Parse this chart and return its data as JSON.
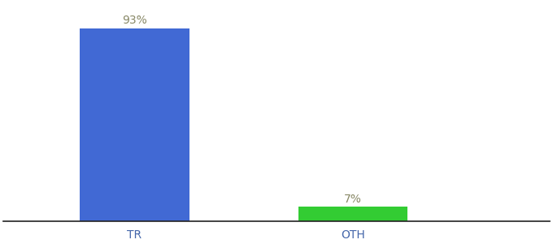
{
  "categories": [
    "TR",
    "OTH"
  ],
  "values": [
    93,
    7
  ],
  "bar_colors": [
    "#4169d4",
    "#33cc33"
  ],
  "bar_labels": [
    "93%",
    "7%"
  ],
  "label_color": "#888866",
  "background_color": "#ffffff",
  "ylim": [
    0,
    105
  ],
  "bar_width": 0.5,
  "tick_fontsize": 10,
  "label_fontsize": 10,
  "x_positions": [
    1,
    2
  ],
  "xlim": [
    0.4,
    2.9
  ]
}
